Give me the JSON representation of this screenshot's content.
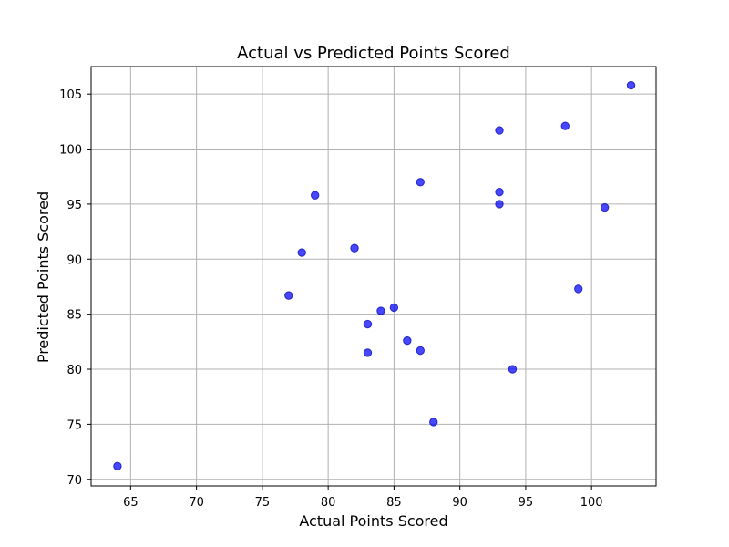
{
  "chart_data": {
    "type": "scatter",
    "title": "Actual vs Predicted Points Scored",
    "xlabel": "Actual Points Scored",
    "ylabel": "Predicted Points Scored",
    "xlim": [
      62,
      104.9
    ],
    "ylim": [
      69.4,
      107.5
    ],
    "xticks": [
      65,
      70,
      75,
      80,
      85,
      90,
      95,
      100
    ],
    "yticks": [
      70,
      75,
      80,
      85,
      90,
      95,
      100,
      105
    ],
    "grid": true,
    "colors": {
      "marker": "#0000ff",
      "grid": "#b0b0b0",
      "axis": "#000000"
    },
    "series": [
      {
        "points": [
          {
            "x": 64,
            "y": 71.2
          },
          {
            "x": 77,
            "y": 86.7
          },
          {
            "x": 78,
            "y": 90.6
          },
          {
            "x": 79,
            "y": 95.8
          },
          {
            "x": 82,
            "y": 91.0
          },
          {
            "x": 83,
            "y": 81.5
          },
          {
            "x": 83,
            "y": 84.1
          },
          {
            "x": 84,
            "y": 85.3
          },
          {
            "x": 85,
            "y": 85.6
          },
          {
            "x": 86,
            "y": 82.6
          },
          {
            "x": 87,
            "y": 81.7
          },
          {
            "x": 87,
            "y": 97.0
          },
          {
            "x": 88,
            "y": 75.2
          },
          {
            "x": 93,
            "y": 101.7
          },
          {
            "x": 93,
            "y": 96.1
          },
          {
            "x": 93,
            "y": 95.0
          },
          {
            "x": 94,
            "y": 80.0
          },
          {
            "x": 98,
            "y": 102.1
          },
          {
            "x": 99,
            "y": 87.3
          },
          {
            "x": 101,
            "y": 94.7
          },
          {
            "x": 103,
            "y": 105.8
          }
        ]
      }
    ]
  }
}
